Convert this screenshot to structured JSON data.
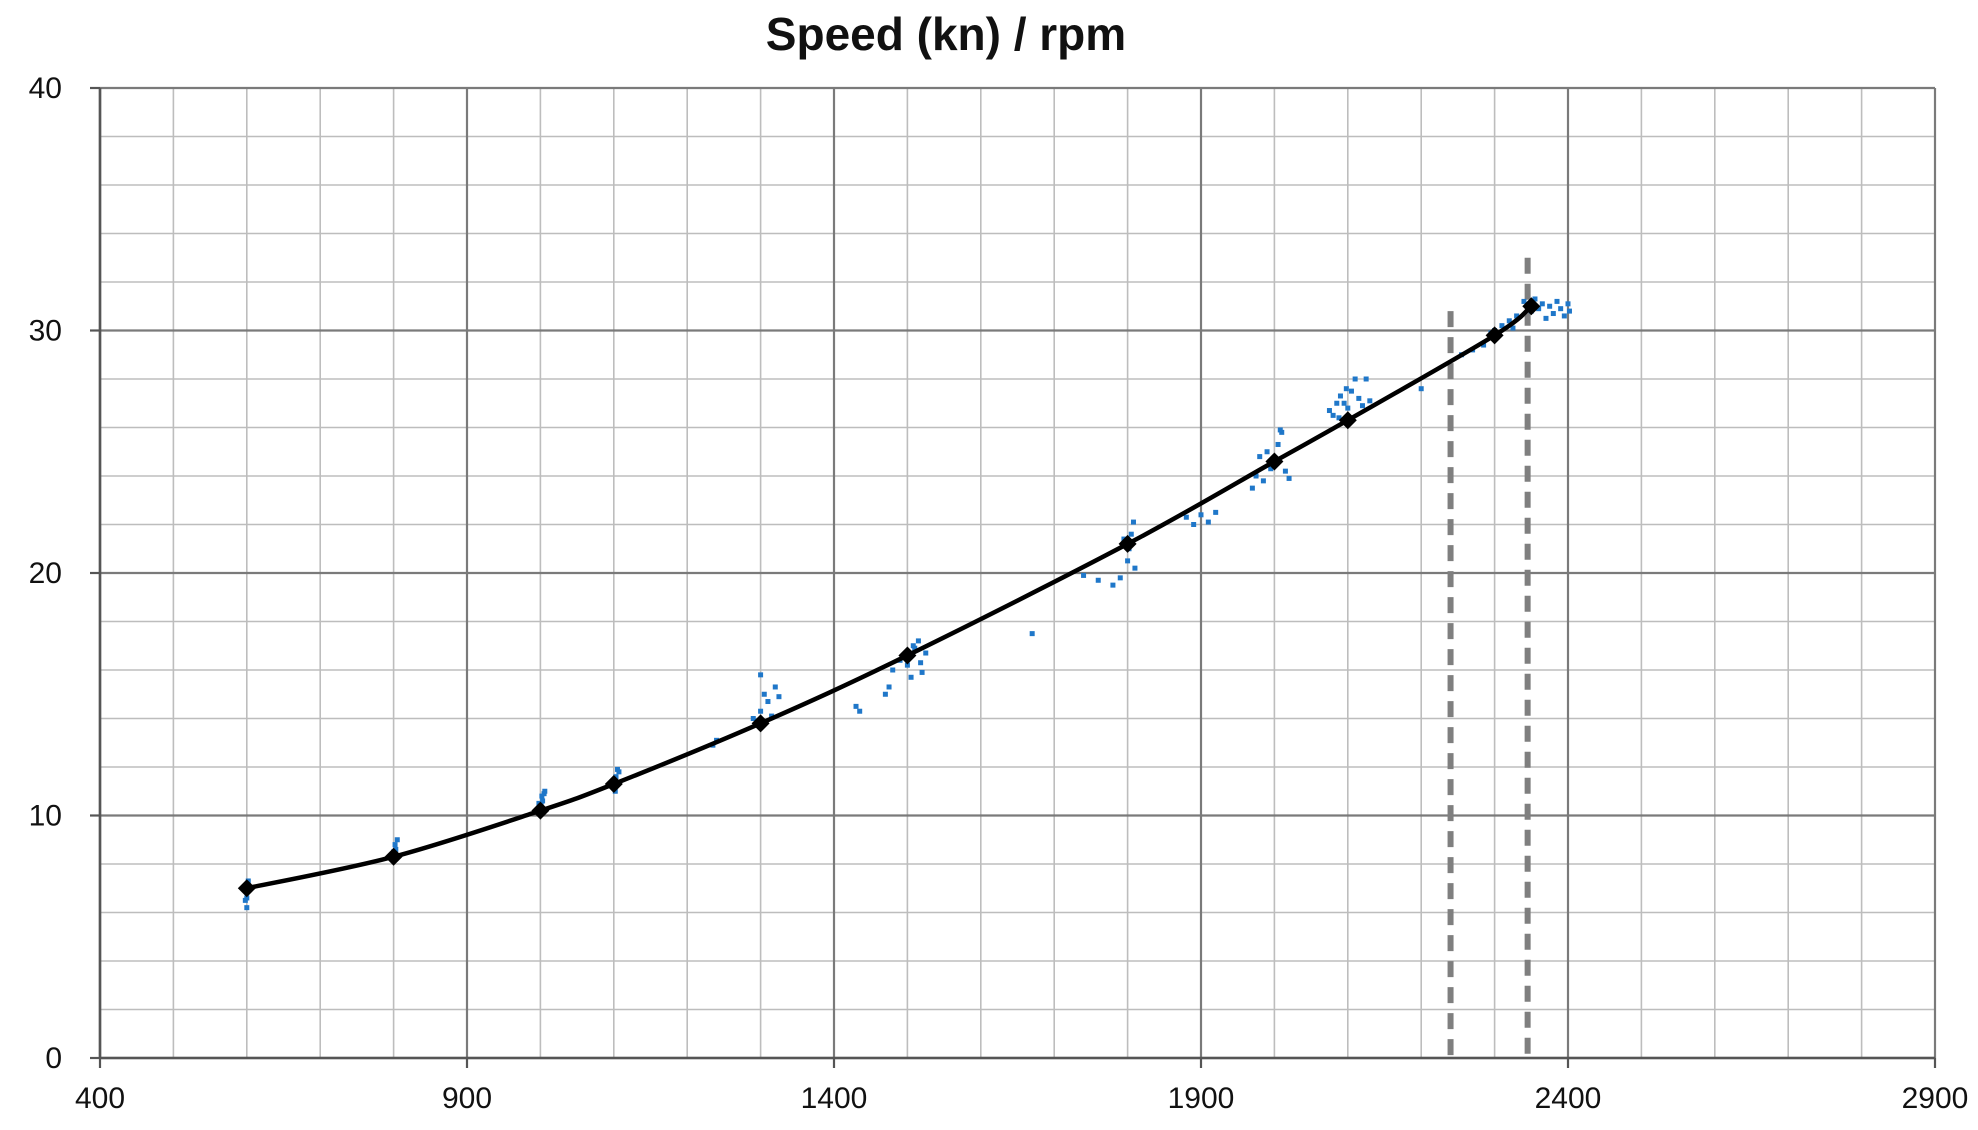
{
  "chart_data": {
    "type": "scatter",
    "title": "Speed (kn) / rpm",
    "xlabel": "",
    "ylabel": "",
    "xlim": [
      400,
      2900
    ],
    "ylim": [
      0,
      40
    ],
    "x_major_ticks": [
      400,
      900,
      1400,
      1900,
      2400,
      2900
    ],
    "x_minor_step": 100,
    "y_major_ticks": [
      0,
      10,
      20,
      30,
      40
    ],
    "y_minor_step": 2,
    "grid": true,
    "legend": "none",
    "colors": {
      "line": "#000000",
      "markers": "#000000",
      "scatter": "#1f77c9",
      "reference_lines": "#7f7f7f",
      "grid_major": "#7a7a7a",
      "grid_minor": "#bdbdbd",
      "axis": "#555555"
    },
    "series": [
      {
        "kind": "line-with-diamond-markers",
        "x": [
          600,
          800,
          1000,
          1100,
          1300,
          1500,
          1800,
          2000,
          2100,
          2300,
          2350
        ],
        "y": [
          7.0,
          8.3,
          10.2,
          11.3,
          13.8,
          16.6,
          21.2,
          24.6,
          26.3,
          29.8,
          31.0
        ]
      },
      {
        "kind": "scatter",
        "points": [
          [
            600,
            6.2
          ],
          [
            600,
            6.6
          ],
          [
            601,
            6.9
          ],
          [
            602,
            7.3
          ],
          [
            598,
            6.5
          ],
          [
            800,
            8.5
          ],
          [
            802,
            8.8
          ],
          [
            805,
            9.0
          ],
          [
            798,
            8.4
          ],
          [
            803,
            8.6
          ],
          [
            1000,
            10.3
          ],
          [
            1003,
            10.6
          ],
          [
            1005,
            10.9
          ],
          [
            998,
            10.5
          ],
          [
            1002,
            10.8
          ],
          [
            1006,
            11.0
          ],
          [
            1001,
            10.4
          ],
          [
            1100,
            11.2
          ],
          [
            1103,
            11.6
          ],
          [
            1105,
            11.9
          ],
          [
            1098,
            11.4
          ],
          [
            1102,
            11.0
          ],
          [
            1107,
            11.8
          ],
          [
            1235,
            12.9
          ],
          [
            1240,
            13.1
          ],
          [
            1290,
            14.0
          ],
          [
            1300,
            14.3
          ],
          [
            1305,
            15.0
          ],
          [
            1310,
            14.7
          ],
          [
            1315,
            14.1
          ],
          [
            1320,
            15.3
          ],
          [
            1300,
            15.8
          ],
          [
            1325,
            14.9
          ],
          [
            1295,
            13.9
          ],
          [
            1430,
            14.5
          ],
          [
            1435,
            14.3
          ],
          [
            1470,
            15.0
          ],
          [
            1475,
            15.3
          ],
          [
            1480,
            16.0
          ],
          [
            1490,
            16.4
          ],
          [
            1500,
            16.2
          ],
          [
            1505,
            15.7
          ],
          [
            1510,
            16.9
          ],
          [
            1515,
            17.2
          ],
          [
            1520,
            15.9
          ],
          [
            1525,
            16.7
          ],
          [
            1508,
            17.0
          ],
          [
            1518,
            16.3
          ],
          [
            1670,
            17.5
          ],
          [
            1740,
            19.9
          ],
          [
            1760,
            19.7
          ],
          [
            1780,
            19.5
          ],
          [
            1790,
            19.8
          ],
          [
            1800,
            20.5
          ],
          [
            1802,
            21.0
          ],
          [
            1805,
            21.6
          ],
          [
            1808,
            22.1
          ],
          [
            1810,
            20.2
          ],
          [
            1795,
            21.4
          ],
          [
            1880,
            22.3
          ],
          [
            1890,
            22.0
          ],
          [
            1900,
            22.4
          ],
          [
            1910,
            22.1
          ],
          [
            1920,
            22.5
          ],
          [
            1970,
            23.5
          ],
          [
            1975,
            24.0
          ],
          [
            1980,
            24.8
          ],
          [
            1985,
            23.8
          ],
          [
            1990,
            25.0
          ],
          [
            2000,
            24.6
          ],
          [
            2005,
            25.3
          ],
          [
            2010,
            25.8
          ],
          [
            2015,
            24.2
          ],
          [
            2020,
            23.9
          ],
          [
            2008,
            25.9
          ],
          [
            1995,
            24.3
          ],
          [
            2075,
            26.7
          ],
          [
            2080,
            26.5
          ],
          [
            2085,
            27.0
          ],
          [
            2090,
            27.3
          ],
          [
            2095,
            27.0
          ],
          [
            2100,
            26.8
          ],
          [
            2105,
            27.5
          ],
          [
            2110,
            28.0
          ],
          [
            2115,
            27.2
          ],
          [
            2120,
            26.9
          ],
          [
            2125,
            28.0
          ],
          [
            2130,
            27.1
          ],
          [
            2088,
            26.4
          ],
          [
            2098,
            27.6
          ],
          [
            2200,
            27.6
          ],
          [
            2255,
            29.0
          ],
          [
            2270,
            29.2
          ],
          [
            2285,
            29.4
          ],
          [
            2295,
            29.9
          ],
          [
            2300,
            30.0
          ],
          [
            2310,
            30.2
          ],
          [
            2320,
            30.4
          ],
          [
            2325,
            30.1
          ],
          [
            2330,
            30.6
          ],
          [
            2340,
            31.2
          ],
          [
            2345,
            31.0
          ],
          [
            2350,
            30.8
          ],
          [
            2355,
            31.3
          ],
          [
            2360,
            30.9
          ],
          [
            2365,
            31.1
          ],
          [
            2370,
            30.5
          ],
          [
            2375,
            31.0
          ],
          [
            2380,
            30.7
          ],
          [
            2385,
            31.2
          ],
          [
            2390,
            30.9
          ],
          [
            2395,
            30.6
          ],
          [
            2400,
            31.1
          ],
          [
            2402,
            30.8
          ]
        ]
      }
    ],
    "reference_lines": [
      {
        "x": 2240,
        "y_top": 30.8,
        "style": "dashed"
      },
      {
        "x": 2345,
        "y_top": 33.0,
        "style": "dashed"
      }
    ]
  }
}
